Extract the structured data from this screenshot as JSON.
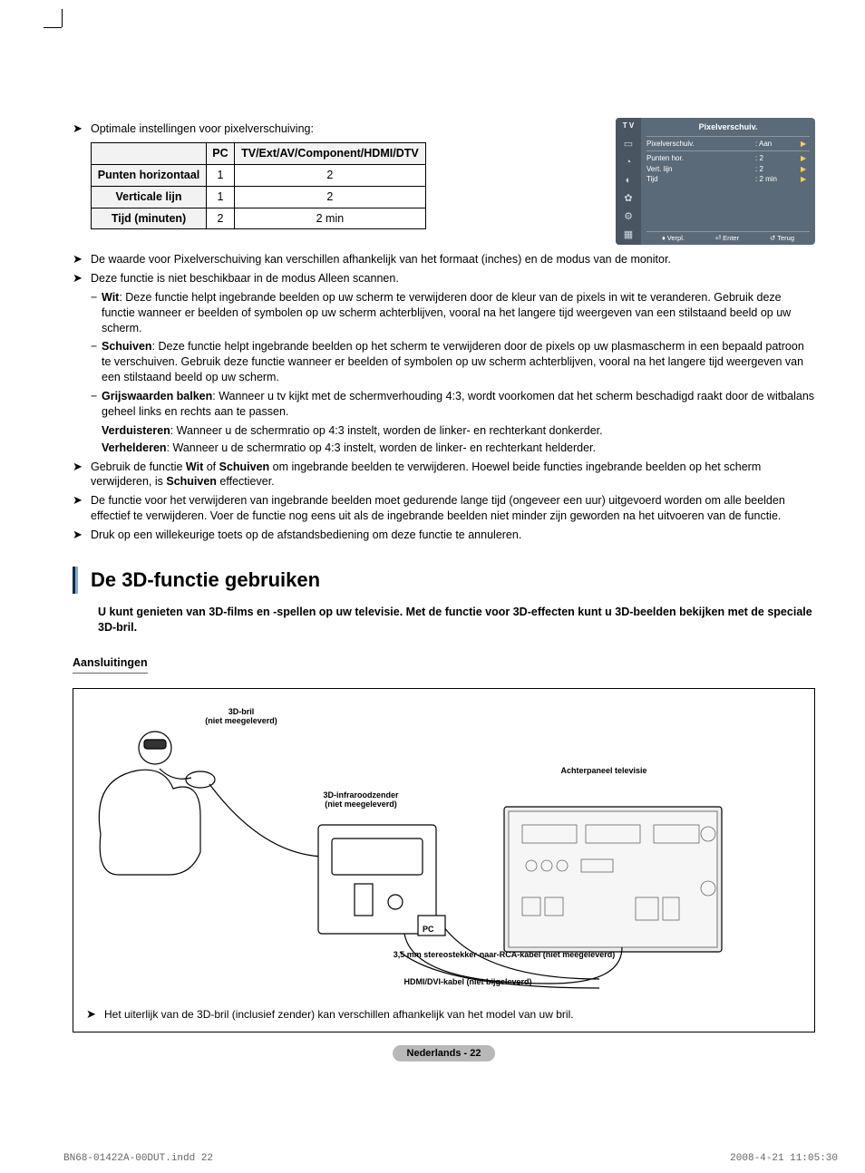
{
  "top_intro": "Optimale instellingen voor pixelverschuiving:",
  "table": {
    "headers": [
      "",
      "PC",
      "TV/Ext/AV/Component/HDMI/DTV"
    ],
    "rows": [
      {
        "h": "Punten horizontaal",
        "c1": "1",
        "c2": "2"
      },
      {
        "h": "Verticale lijn",
        "c1": "1",
        "c2": "2"
      },
      {
        "h": "Tijd (minuten)",
        "c1": "2",
        "c2": "2 min"
      }
    ]
  },
  "osd": {
    "tv_label": "T V",
    "title": "Pixelverschuiv.",
    "rows": [
      {
        "k": "Pixelverschuiv.",
        "v": ": Aan"
      },
      {
        "k": "Punten hor.",
        "v": ": 2"
      },
      {
        "k": "Vert. lijn",
        "v": ": 2"
      },
      {
        "k": "Tijd",
        "v": ": 2 min"
      }
    ],
    "foot": {
      "move": "Verpl.",
      "enter": "Enter",
      "return": "Terug"
    },
    "side_icons": [
      "▭",
      "◔",
      "◐",
      "✿",
      "⚙",
      "▦"
    ]
  },
  "bullets": [
    "De waarde voor Pixelverschuiving kan verschillen afhankelijk van het formaat (inches) en de modus van de monitor.",
    "Deze functie is niet beschikbaar in de modus Alleen scannen."
  ],
  "dashes": [
    {
      "bold": "Wit",
      "text": ": Deze functie helpt ingebrande beelden op uw scherm te verwijderen door de kleur van de pixels in wit te veranderen. Gebruik deze functie wanneer er beelden of symbolen op uw scherm achterblijven, vooral na het langere tijd weergeven van een stilstaand beeld op uw scherm."
    },
    {
      "bold": "Schuiven",
      "text": ": Deze functie helpt ingebrande beelden op het scherm te verwijderen door de pixels op uw plasmascherm in een bepaald patroon te verschuiven. Gebruik deze functie wanneer er beelden of symbolen op uw scherm achterblijven, vooral na het langere tijd weergeven van een stilstaand beeld op uw scherm."
    }
  ],
  "grijs": {
    "bold": "Grijswaarden balken",
    "text": ": Wanneer u tv kijkt met de schermverhouding 4:3, wordt voorkomen dat het scherm beschadigd raakt door de witbalans geheel links en rechts aan te passen.",
    "verduisteren_b": "Verduisteren",
    "verduisteren": ": Wanneer u de schermratio op 4:3 instelt, worden de linker- en rechterkant donkerder.",
    "verhelderen_b": "Verhelderen",
    "verhelderen": ": Wanneer u de schermratio op 4:3 instelt, worden de linker- en rechterkant helderder."
  },
  "bullets2": [
    {
      "pre": "Gebruik de functie ",
      "b1": "Wit",
      "mid": " of ",
      "b2": "Schuiven",
      "mid2": " om ingebrande beelden te verwijderen. Hoewel beide functies ingebrande beelden op het scherm verwijderen, is ",
      "b3": "Schuiven",
      "post": " effectiever."
    },
    {
      "plain": "De functie voor het verwijderen van ingebrande beelden moet gedurende lange tijd (ongeveer een uur) uitgevoerd worden om alle beelden effectief te verwijderen. Voer de functie nog eens uit als de ingebrande beelden niet minder zijn geworden na het uitvoeren van de functie."
    },
    {
      "plain": "Druk op een willekeurige toets op de afstandsbediening om deze functie te annuleren."
    }
  ],
  "section_title": "De 3D-functie gebruiken",
  "section_intro": "U kunt genieten van 3D-films en -spellen op uw televisie. Met de functie voor 3D-effecten kunt u 3D-beelden bekijken met de speciale 3D-bril.",
  "sub_heading": "Aansluitingen",
  "diagram": {
    "bril": "3D-bril\n(niet meegeleverd)",
    "zender": "3D-infraroodzender\n(niet meegeleverd)",
    "tvpanel": "Achterpaneel televisie",
    "pc": "PC",
    "jack": "3,5 mm stereostekker-naar-RCA-kabel (niet meegeleverd)",
    "hdmi": "HDMI/DVI-kabel (niet bijgeleverd)"
  },
  "diagram_note": "Het uiterlijk van de 3D-bril (inclusief zender) kan verschillen afhankelijk van het model van uw bril.",
  "page_foot": "Nederlands - 22",
  "print": {
    "left": "BN68-01422A-00DUT.indd   22",
    "right": "2008-4-21   11:05:30"
  }
}
